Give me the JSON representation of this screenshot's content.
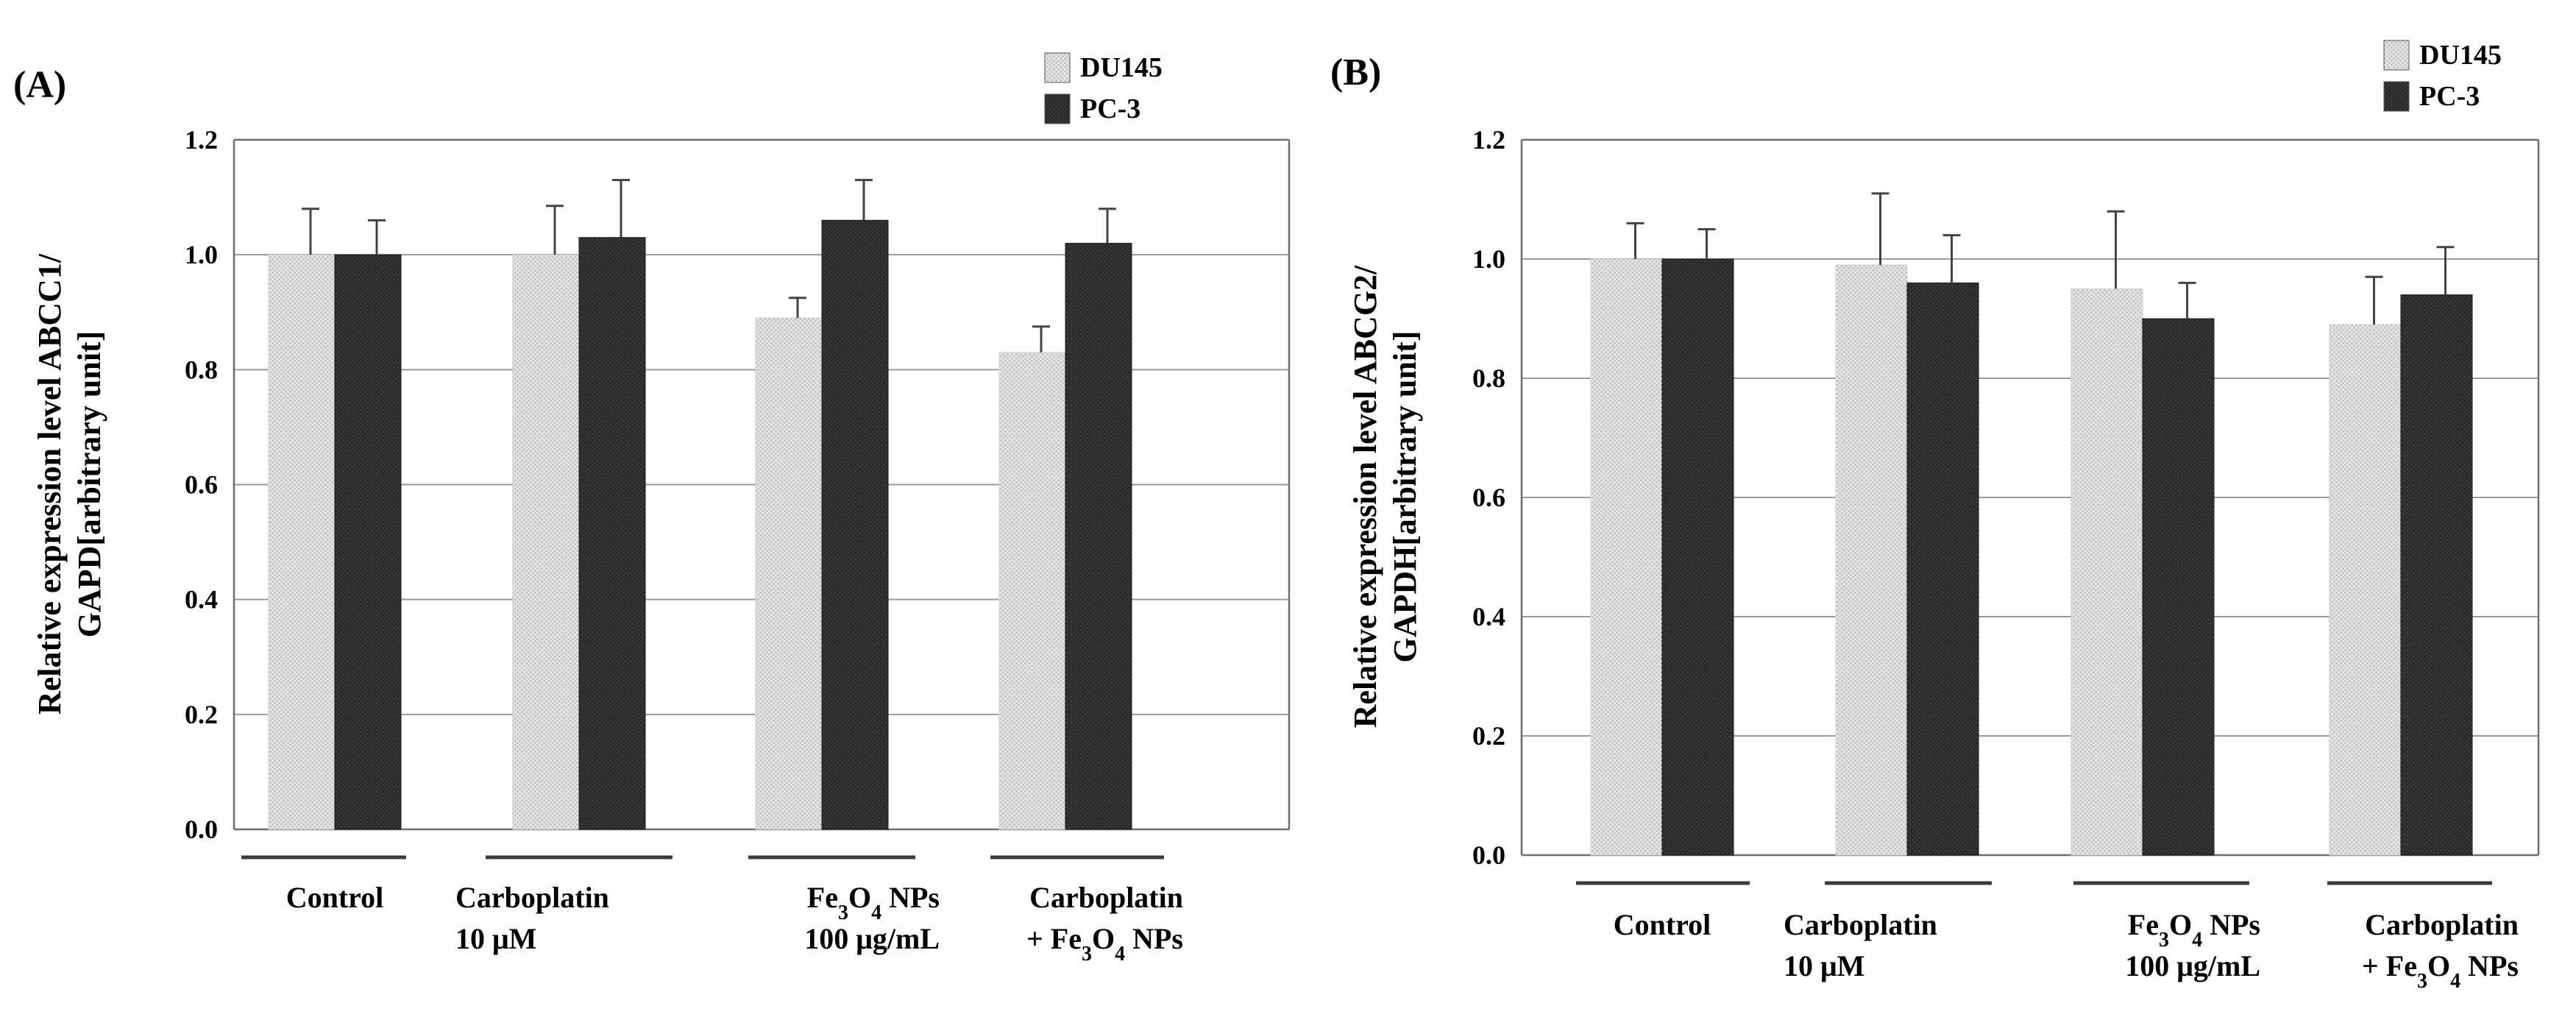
{
  "chart_data": [
    {
      "type": "bar",
      "panel_label": "(A)",
      "ylabel_lines": [
        "Relative expression level ABCC1/",
        "GAPD[arbitrary unit]"
      ],
      "ylim": [
        0,
        1.2
      ],
      "y_ticks": [
        "0.0",
        "0.2",
        "0.4",
        "0.6",
        "0.8",
        "1.0",
        "1.2"
      ],
      "grid": true,
      "legend_position": "top-right",
      "categories": [
        {
          "lines": [
            [
              {
                "t": "Control"
              }
            ]
          ],
          "align": "center"
        },
        {
          "lines": [
            [
              {
                "t": "Carboplatin"
              }
            ],
            [
              {
                "t": "10 μM"
              }
            ]
          ],
          "align": "left"
        },
        {
          "lines": [
            [
              {
                "t": "Fe"
              },
              {
                "t": "3",
                "sub": true
              },
              {
                "t": "O"
              },
              {
                "t": "4",
                "sub": true
              },
              {
                "t": " NPs"
              }
            ],
            [
              {
                "t": "100 μg/mL"
              }
            ]
          ],
          "align": "end"
        },
        {
          "lines": [
            [
              {
                "t": "Carboplatin"
              }
            ],
            [
              {
                "t": "+ Fe"
              },
              {
                "t": "3",
                "sub": true
              },
              {
                "t": "O"
              },
              {
                "t": "4",
                "sub": true
              },
              {
                "t": " NPs"
              }
            ]
          ],
          "align": "end"
        }
      ],
      "series": [
        {
          "name": "DU145",
          "color": "#d6d6d6",
          "values": [
            1.0,
            1.0,
            0.89,
            0.83
          ],
          "errors": [
            0.08,
            0.085,
            0.035,
            0.045
          ]
        },
        {
          "name": "PC-3",
          "color": "#262626",
          "values": [
            1.0,
            1.03,
            1.06,
            1.02
          ],
          "errors": [
            0.06,
            0.1,
            0.07,
            0.06
          ]
        }
      ]
    },
    {
      "type": "bar",
      "panel_label": "(B)",
      "ylabel_lines": [
        "Relative expression level ABCG2/",
        "GAPDH[arbitrary unit]"
      ],
      "ylim": [
        0,
        1.2
      ],
      "y_ticks": [
        "0.0",
        "0.2",
        "0.4",
        "0.6",
        "0.8",
        "1.0",
        "1.2"
      ],
      "grid": true,
      "legend_position": "top-right",
      "categories": [
        {
          "lines": [
            [
              {
                "t": "Control"
              }
            ]
          ],
          "align": "center"
        },
        {
          "lines": [
            [
              {
                "t": "Carboplatin"
              }
            ],
            [
              {
                "t": "10 μM"
              }
            ]
          ],
          "align": "left"
        },
        {
          "lines": [
            [
              {
                "t": "Fe"
              },
              {
                "t": "3",
                "sub": true
              },
              {
                "t": "O"
              },
              {
                "t": "4",
                "sub": true
              },
              {
                "t": " NPs"
              }
            ],
            [
              {
                "t": "100 μg/mL"
              }
            ]
          ],
          "align": "end"
        },
        {
          "lines": [
            [
              {
                "t": "Carboplatin"
              }
            ],
            [
              {
                "t": "+ Fe"
              },
              {
                "t": "3",
                "sub": true
              },
              {
                "t": "O"
              },
              {
                "t": "4",
                "sub": true
              },
              {
                "t": " NPs"
              }
            ]
          ],
          "align": "end"
        }
      ],
      "series": [
        {
          "name": "DU145",
          "color": "#d6d6d6",
          "values": [
            1.0,
            0.99,
            0.95,
            0.89
          ],
          "errors": [
            0.06,
            0.12,
            0.13,
            0.08
          ]
        },
        {
          "name": "PC-3",
          "color": "#262626",
          "values": [
            1.0,
            0.96,
            0.9,
            0.94
          ],
          "errors": [
            0.05,
            0.08,
            0.06,
            0.08
          ]
        }
      ]
    }
  ]
}
